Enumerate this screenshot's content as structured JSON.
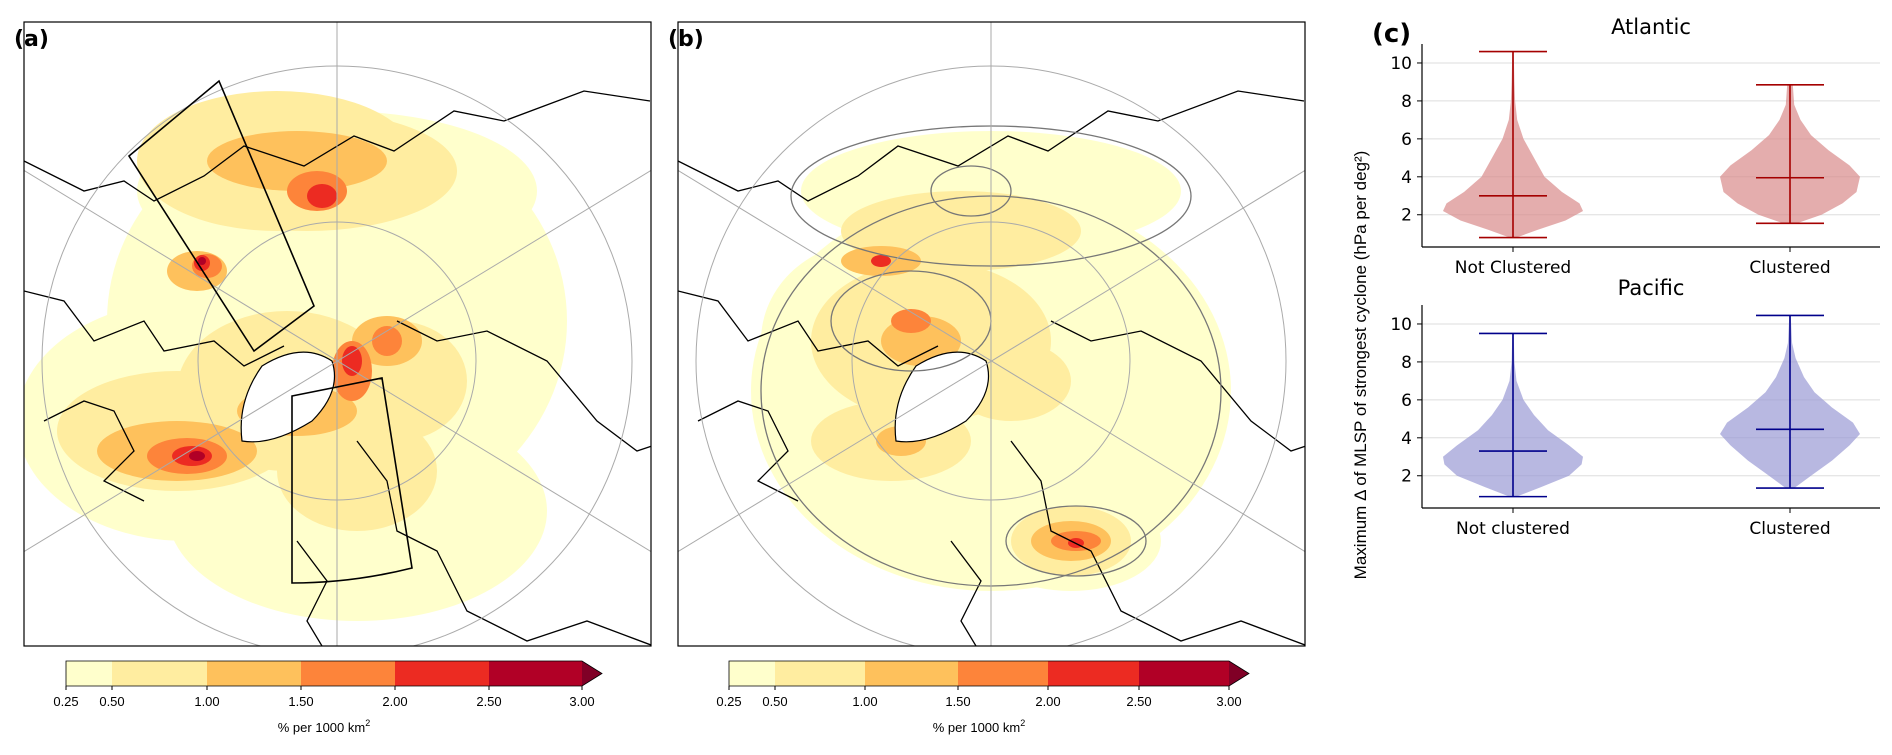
{
  "panels": {
    "a": {
      "label": "(a)"
    },
    "b": {
      "label": "(b)"
    },
    "c": {
      "label": "(c)"
    }
  },
  "colorbar": {
    "ticks": [
      "0.25",
      "0.50",
      "1.00",
      "1.50",
      "2.00",
      "2.50",
      "3.00"
    ],
    "bounds": [
      0.25,
      0.5,
      1.0,
      1.5,
      2.0,
      2.5,
      3.0
    ],
    "colors": [
      "#ffffcc",
      "#ffeda0",
      "#fec15c",
      "#fd843a",
      "#ec2b22",
      "#b10026"
    ],
    "extend_color": "#800026",
    "label": "% per 1000 km",
    "label_sup": "2"
  },
  "chart_data": [
    {
      "type": "violin",
      "title": "Atlantic",
      "ylabel": "Maximum Δ of MLSP of strongest cyclone (hPa per deg²)",
      "ylim": [
        0.3,
        11
      ],
      "yticks": [
        "2",
        "4",
        "6",
        "8",
        "10"
      ],
      "grid": true,
      "color": "#a50000",
      "fill": "#d98a8a",
      "categories": [
        "Not Clustered",
        "Clustered"
      ],
      "stats": [
        {
          "min": 0.8,
          "max": 10.6,
          "median": 3.0
        },
        {
          "min": 1.55,
          "max": 8.85,
          "median": 3.95
        }
      ],
      "density": [
        {
          "y": [
            0.8,
            1.2,
            1.7,
            2.2,
            2.6,
            3.2,
            4.0,
            5.0,
            6.0,
            7.0,
            8.0,
            9.0,
            10.6
          ],
          "w": [
            0.05,
            0.35,
            0.75,
            1.0,
            0.95,
            0.7,
            0.45,
            0.3,
            0.15,
            0.06,
            0.03,
            0.02,
            0.01
          ]
        },
        {
          "y": [
            1.55,
            2.0,
            2.6,
            3.2,
            4.0,
            4.6,
            5.4,
            6.2,
            7.0,
            7.8,
            8.85
          ],
          "w": [
            0.1,
            0.45,
            0.75,
            0.95,
            1.0,
            0.85,
            0.55,
            0.3,
            0.15,
            0.06,
            0.04
          ]
        }
      ]
    },
    {
      "type": "violin",
      "title": "Pacific",
      "ylabel": "",
      "ylim": [
        0.3,
        11
      ],
      "yticks": [
        "2",
        "4",
        "6",
        "8",
        "10"
      ],
      "grid": true,
      "color": "#00008b",
      "fill": "#9a9ad4",
      "categories": [
        "Not clustered",
        "Clustered"
      ],
      "stats": [
        {
          "min": 0.9,
          "max": 9.5,
          "median": 3.3
        },
        {
          "min": 1.35,
          "max": 10.45,
          "median": 4.45
        }
      ],
      "density": [
        {
          "y": [
            0.9,
            1.4,
            2.0,
            2.6,
            3.0,
            3.6,
            4.4,
            5.2,
            6.0,
            7.0,
            8.0,
            9.5
          ],
          "w": [
            0.05,
            0.4,
            0.8,
            0.98,
            1.0,
            0.8,
            0.5,
            0.3,
            0.15,
            0.05,
            0.02,
            0.01
          ]
        },
        {
          "y": [
            1.35,
            2.0,
            2.8,
            3.6,
            4.2,
            4.8,
            5.6,
            6.4,
            7.2,
            8.2,
            9.0,
            10.45
          ],
          "w": [
            0.06,
            0.3,
            0.6,
            0.85,
            1.0,
            0.9,
            0.6,
            0.35,
            0.2,
            0.08,
            0.03,
            0.01
          ]
        }
      ]
    }
  ]
}
